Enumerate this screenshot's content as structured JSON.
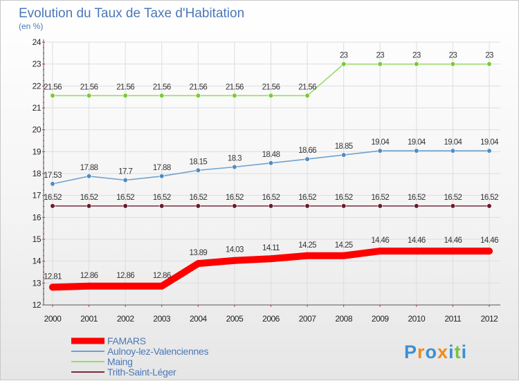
{
  "chart_data": {
    "type": "line",
    "title": "Evolution du Taux de Taxe d'Habitation",
    "subtitle": "(en %)",
    "x": [
      "2000",
      "2001",
      "2002",
      "2003",
      "2004",
      "2005",
      "2006",
      "2007",
      "2008",
      "2009",
      "2010",
      "2011",
      "2012"
    ],
    "ylim": [
      12,
      24
    ],
    "yticks": [
      12,
      13,
      14,
      15,
      16,
      17,
      18,
      19,
      20,
      21,
      22,
      23,
      24
    ],
    "grid": true,
    "legend_position": "bottom-left",
    "series": [
      {
        "name": "FAMARS",
        "color": "#ff0000",
        "marker_color": "#ff0000",
        "thick": true,
        "values": [
          12.81,
          12.86,
          12.86,
          12.86,
          13.89,
          14.03,
          14.11,
          14.25,
          14.25,
          14.46,
          14.46,
          14.46,
          14.46
        ],
        "labels": [
          "12.81",
          "12.86",
          "12.86",
          "12.86",
          "13.89",
          "14.03",
          "14.11",
          "14.25",
          "14.25",
          "14.46",
          "14.46",
          "14.46",
          "14.46"
        ]
      },
      {
        "name": "Aulnoy-lez-Valenciennes",
        "color": "#6ea1cf",
        "marker_color": "#4f8cc4",
        "thick": false,
        "values": [
          17.53,
          17.88,
          17.7,
          17.88,
          18.15,
          18.3,
          18.48,
          18.66,
          18.85,
          19.04,
          19.04,
          19.04,
          19.04
        ],
        "labels": [
          "17.53",
          "17.88",
          "17.7",
          "17.88",
          "18.15",
          "18.3",
          "18.48",
          "18.66",
          "18.85",
          "19.04",
          "19.04",
          "19.04",
          "19.04"
        ]
      },
      {
        "name": "Maing",
        "color": "#99dd66",
        "marker_color": "#77cc33",
        "thick": false,
        "values": [
          21.56,
          21.56,
          21.56,
          21.56,
          21.56,
          21.56,
          21.56,
          21.56,
          23,
          23,
          23,
          23,
          23
        ],
        "labels": [
          "21.56",
          "21.56",
          "21.56",
          "21.56",
          "21.56",
          "21.56",
          "21.56",
          "21.56",
          "23",
          "23",
          "23",
          "23",
          "23"
        ]
      },
      {
        "name": "Trith-Saint-Léger",
        "color": "#7a2a3a",
        "marker_color": "#6a1a2a",
        "thick": false,
        "values": [
          16.52,
          16.52,
          16.52,
          16.52,
          16.52,
          16.52,
          16.52,
          16.52,
          16.52,
          16.52,
          16.52,
          16.52,
          16.52
        ],
        "labels": [
          "16.52",
          "16.52",
          "16.52",
          "16.52",
          "16.52",
          "16.52",
          "16.52",
          "16.52",
          "16.52",
          "16.52",
          "16.52",
          "16.52",
          "16.52"
        ]
      }
    ]
  },
  "logo": {
    "text": "Proxiti",
    "colors": [
      "#3a8fd6",
      "#f08a1c",
      "#3a8fd6",
      "#f08a1c",
      "#3a8fd6",
      "#7cc242",
      "#3a8fd6"
    ]
  }
}
